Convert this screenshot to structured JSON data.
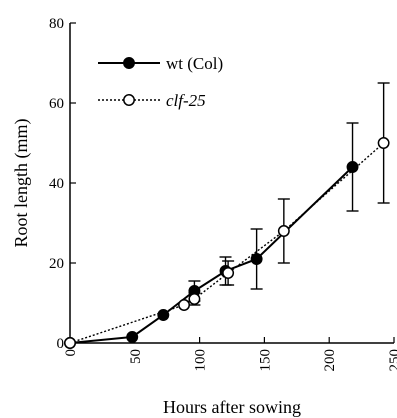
{
  "chart_data": {
    "type": "line",
    "xlabel": "Hours after sowing",
    "ylabel": "Root length (mm)",
    "xlim": [
      0,
      250
    ],
    "ylim": [
      0,
      80
    ],
    "xticks": [
      "0",
      "50",
      "100",
      "150",
      "200",
      "250"
    ],
    "yticks": [
      "0",
      "20",
      "40",
      "60",
      "80"
    ],
    "legend_position": "top-left",
    "series": [
      {
        "name": "wt (Col)",
        "marker": "filled-circle",
        "line_style": "solid",
        "x": [
          0,
          48,
          72,
          96,
          120,
          144,
          218
        ],
        "y": [
          0,
          1.5,
          7,
          13,
          18,
          21,
          44
        ],
        "error": [
          0,
          0,
          0,
          2.5,
          3.5,
          7.5,
          11
        ]
      },
      {
        "name": "clf-25",
        "marker": "open-circle",
        "line_style": "dotted",
        "x": [
          0,
          88,
          96,
          122,
          165,
          242
        ],
        "y": [
          0,
          9.5,
          11,
          17.5,
          28,
          50
        ],
        "error": [
          0,
          0,
          1.5,
          3,
          8,
          15
        ]
      }
    ],
    "colors": {
      "line": "#000000",
      "open_marker_fill": "#ffffff"
    }
  }
}
